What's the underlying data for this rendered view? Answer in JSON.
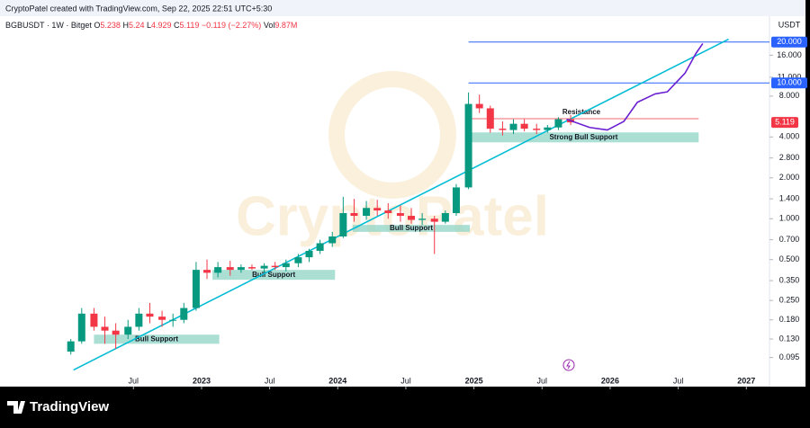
{
  "header": {
    "credit": "CryptoPatel created with TradingView.com, Sep 22, 2025 22:51 UTC+5:30",
    "brand": "TradingView"
  },
  "legend": {
    "symbol": "BGBUSDT · 1W · Bitget",
    "ohlc": [
      {
        "label": "O",
        "value": 5.238
      },
      {
        "label": "H",
        "value": 5.24
      },
      {
        "label": "L",
        "value": 4.929
      },
      {
        "label": "C",
        "value": 5.119
      }
    ],
    "change": "−0.119 (−2.27%)",
    "volume_label": "Vol",
    "volume": "9.87M"
  },
  "chart_data": {
    "type": "candlestick",
    "watermark": "CryptoPatel",
    "currency": "USDT",
    "log_scale": true,
    "up_color": "#089981",
    "down_color": "#f23645",
    "x": [
      2022.04,
      2022.12,
      2022.21,
      2022.29,
      2022.37,
      2022.46,
      2022.54,
      2022.62,
      2022.71,
      2022.79,
      2022.87,
      2022.96,
      2023.04,
      2023.12,
      2023.21,
      2023.29,
      2023.37,
      2023.46,
      2023.54,
      2023.62,
      2023.71,
      2023.79,
      2023.87,
      2023.96,
      2024.04,
      2024.12,
      2024.21,
      2024.29,
      2024.37,
      2024.46,
      2024.54,
      2024.62,
      2024.71,
      2024.79,
      2024.87,
      2024.96,
      2025.04,
      2025.12,
      2025.21,
      2025.29,
      2025.37,
      2025.46,
      2025.54,
      2025.62,
      2025.71
    ],
    "open": [
      0.105,
      0.125,
      0.2,
      0.16,
      0.15,
      0.14,
      0.16,
      0.2,
      0.19,
      0.18,
      0.18,
      0.22,
      0.42,
      0.4,
      0.44,
      0.42,
      0.44,
      0.43,
      0.45,
      0.44,
      0.47,
      0.52,
      0.58,
      0.66,
      0.74,
      1.1,
      1.05,
      1.2,
      1.15,
      1.1,
      1.05,
      0.98,
      1.0,
      0.95,
      1.1,
      1.7,
      7.0,
      6.5,
      4.6,
      4.5,
      5.0,
      4.6,
      4.5,
      4.7,
      5.4
    ],
    "high": [
      0.13,
      0.22,
      0.22,
      0.19,
      0.17,
      0.18,
      0.22,
      0.24,
      0.21,
      0.2,
      0.24,
      0.48,
      0.5,
      0.48,
      0.49,
      0.46,
      0.46,
      0.47,
      0.48,
      0.5,
      0.55,
      0.6,
      0.7,
      0.8,
      1.45,
      1.4,
      1.35,
      1.38,
      1.3,
      1.25,
      1.2,
      1.1,
      1.05,
      1.15,
      1.8,
      8.5,
      8.2,
      6.8,
      5.2,
      5.4,
      5.4,
      5.0,
      4.9,
      5.6,
      5.8
    ],
    "low": [
      0.1,
      0.12,
      0.15,
      0.12,
      0.11,
      0.13,
      0.15,
      0.17,
      0.16,
      0.16,
      0.17,
      0.21,
      0.36,
      0.37,
      0.38,
      0.4,
      0.42,
      0.4,
      0.42,
      0.41,
      0.44,
      0.48,
      0.55,
      0.62,
      0.72,
      0.95,
      0.98,
      1.05,
      1.0,
      0.95,
      0.92,
      0.9,
      0.55,
      0.92,
      1.05,
      1.65,
      6.0,
      4.3,
      4.1,
      4.2,
      4.4,
      4.2,
      4.3,
      4.5,
      4.9
    ],
    "close": [
      0.125,
      0.2,
      0.16,
      0.15,
      0.14,
      0.16,
      0.2,
      0.19,
      0.18,
      0.18,
      0.22,
      0.42,
      0.4,
      0.44,
      0.42,
      0.44,
      0.43,
      0.45,
      0.44,
      0.47,
      0.52,
      0.58,
      0.66,
      0.74,
      1.1,
      1.05,
      1.2,
      1.15,
      1.1,
      1.05,
      0.98,
      1.0,
      0.95,
      1.1,
      1.7,
      7.0,
      6.5,
      4.6,
      4.5,
      5.0,
      4.6,
      4.5,
      4.7,
      5.4,
      5.119
    ],
    "xlim": [
      2021.52,
      2027.17
    ],
    "ylim": [
      0.058,
      31
    ],
    "xticks": [
      {
        "value": 2022.5,
        "label": "Jul"
      },
      {
        "value": 2023,
        "label": "2023"
      },
      {
        "value": 2023.5,
        "label": "Jul"
      },
      {
        "value": 2024,
        "label": "2024"
      },
      {
        "value": 2024.5,
        "label": "Jul"
      },
      {
        "value": 2025,
        "label": "2025"
      },
      {
        "value": 2025.5,
        "label": "Jul"
      },
      {
        "value": 2026,
        "label": "2026"
      },
      {
        "value": 2026.5,
        "label": "Jul"
      },
      {
        "value": 2027,
        "label": "2027"
      }
    ],
    "yticks": [
      {
        "value": 0.095,
        "label": "0.095"
      },
      {
        "value": 0.13,
        "label": "0.130"
      },
      {
        "value": 0.18,
        "label": "0.180"
      },
      {
        "value": 0.25,
        "label": "0.250"
      },
      {
        "value": 0.35,
        "label": "0.350"
      },
      {
        "value": 0.5,
        "label": "0.500"
      },
      {
        "value": 0.7,
        "label": "0.700"
      },
      {
        "value": 1,
        "label": "1.000"
      },
      {
        "value": 1.4,
        "label": "1.400"
      },
      {
        "value": 2,
        "label": "2.000"
      },
      {
        "value": 2.8,
        "label": "2.800"
      },
      {
        "value": 4,
        "label": "4.000"
      },
      {
        "value": 8,
        "label": "8.000"
      },
      {
        "value": 11,
        "label": "11.000"
      },
      {
        "value": 16,
        "label": "16.000"
      }
    ],
    "zones": [
      {
        "label": "Bull Support",
        "x": [
          2022.21,
          2023.13
        ],
        "y": [
          0.12,
          0.14
        ]
      },
      {
        "label": "Bull Support",
        "x": [
          2023.08,
          2023.98
        ],
        "y": [
          0.355,
          0.42
        ]
      },
      {
        "label": "Bull Support",
        "x": [
          2024.11,
          2024.97
        ],
        "y": [
          0.8,
          0.9
        ]
      },
      {
        "label": "Strong Bull Support",
        "x": [
          2024.96,
          2026.65
        ],
        "y": [
          3.65,
          4.32
        ]
      }
    ],
    "resistance": {
      "label": "Resistance",
      "x": [
        2024.96,
        2026.65
      ],
      "value": 5.45,
      "color": "#f23645"
    },
    "levels": [
      {
        "value": 20,
        "label": "20.000",
        "x0": 2024.96,
        "color": "#2962ff"
      },
      {
        "value": 10,
        "label": "10.000",
        "x0": 2024.96,
        "color": "#2962ff"
      }
    ],
    "last_price": {
      "value": 5.119,
      "label": "5.119",
      "color": "#f23645"
    },
    "trendline": {
      "color": "#00bcd4",
      "x": [
        2022.06,
        2026.87
      ],
      "y": [
        0.077,
        21
      ]
    },
    "projection": {
      "color": "#6a1fd1",
      "x": [
        2025.68,
        2025.85,
        2025.98,
        2026.1,
        2026.2,
        2026.33,
        2026.42,
        2026.55,
        2026.63,
        2026.68
      ],
      "y": [
        5.4,
        4.7,
        4.5,
        5.2,
        7.2,
        8.3,
        8.6,
        11.8,
        16.5,
        19.5
      ]
    }
  }
}
